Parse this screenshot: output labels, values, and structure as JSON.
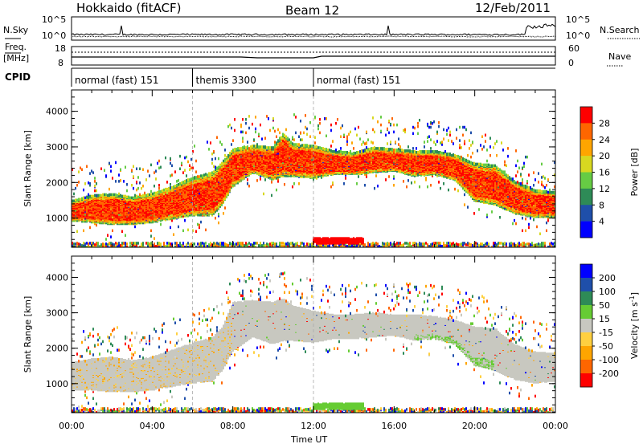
{
  "header": {
    "station": "Hokkaido (fitACF)",
    "beam": "Beam 12",
    "date": "12/Feb/2011"
  },
  "top_panels": {
    "nsky_label": "N.Sky",
    "nsearch_label": "N.Search",
    "freq_label_1": "Freq.",
    "freq_label_2": "[MHz]",
    "nave_label": "Nave",
    "cpid_label": "CPID",
    "nsky_ticks": [
      "10^5",
      "10^0"
    ],
    "nsearch_ticks": [
      "10^5",
      "10^0"
    ],
    "freq_ticks": [
      "18",
      "8"
    ],
    "nave_ticks": [
      "60",
      "0"
    ]
  },
  "cpid_segments": [
    {
      "label": "normal (fast) 151",
      "start": 0,
      "end": 6
    },
    {
      "label": "themis 3300",
      "start": 6,
      "end": 12
    },
    {
      "label": "normal (fast) 151",
      "start": 12,
      "end": 24
    }
  ],
  "colors": {
    "power_scale": [
      "#0000ff",
      "#1f4faa",
      "#2e8b57",
      "#66cc44",
      "#d8d820",
      "#ffa500",
      "#ff6600",
      "#ff0000"
    ],
    "velocity_scale": [
      "#ff0000",
      "#ff6600",
      "#ffa500",
      "#ffd040",
      "#c8c8c0",
      "#66cc33",
      "#2e8b57",
      "#1f4faa",
      "#0000ff"
    ]
  },
  "chart_data": [
    {
      "type": "heatmap",
      "title": "Power",
      "xlabel": "",
      "ylabel": "Slant Range [km]",
      "xlim": [
        0,
        24
      ],
      "ylim": [
        180,
        4600
      ],
      "x_ticks": [
        "00:00",
        "04:00",
        "08:00",
        "12:00",
        "16:00",
        "20:00",
        "00:00"
      ],
      "y_ticks": [
        1000,
        2000,
        3000,
        4000
      ],
      "colorbar_label": "Power [dB]",
      "colorbar_ticks": [
        4,
        8,
        12,
        16,
        20,
        24,
        28
      ],
      "main_band": {
        "t": [
          0,
          1,
          2,
          3,
          4,
          5,
          6,
          7,
          7.5,
          8,
          9,
          10,
          10.5,
          11,
          12,
          13,
          14,
          15,
          16,
          17,
          18,
          19,
          20,
          21,
          22,
          23,
          24
        ],
        "lower": [
          950,
          900,
          850,
          850,
          900,
          1000,
          1100,
          1100,
          1400,
          1900,
          2300,
          2100,
          2200,
          2200,
          2150,
          2250,
          2250,
          2300,
          2350,
          2200,
          2250,
          2100,
          1500,
          1400,
          1150,
          1050,
          1050
        ],
        "upper": [
          1500,
          1650,
          1700,
          1600,
          1700,
          1900,
          2150,
          2300,
          2600,
          2950,
          3050,
          3000,
          3400,
          3100,
          3050,
          2900,
          2850,
          3000,
          2950,
          2900,
          2900,
          2800,
          2550,
          2500,
          2050,
          1800,
          1750
        ]
      },
      "near_range_band": {
        "range": [
          300,
          450
        ],
        "t": [
          12,
          14.5
        ]
      }
    },
    {
      "type": "heatmap",
      "title": "Velocity",
      "xlabel": "Time UT",
      "ylabel": "Slant Range [km]",
      "xlim": [
        0,
        24
      ],
      "ylim": [
        180,
        4600
      ],
      "x_ticks": [
        "00:00",
        "04:00",
        "08:00",
        "12:00",
        "16:00",
        "20:00",
        "00:00"
      ],
      "y_ticks": [
        1000,
        2000,
        3000,
        4000
      ],
      "colorbar_label": "Velocity [m s",
      "colorbar_label_sup": "-1",
      "colorbar_label_end": "]",
      "colorbar_ticks": [
        200,
        100,
        50,
        15,
        -15,
        -50,
        -100,
        -200
      ],
      "main_band": {
        "t": [
          0,
          1,
          2,
          3,
          4,
          5,
          6,
          7,
          7.5,
          8,
          9,
          10,
          10.5,
          11,
          12,
          13,
          14,
          15,
          16,
          17,
          18,
          19,
          20,
          21,
          22,
          23,
          24
        ],
        "lower": [
          850,
          850,
          800,
          800,
          850,
          950,
          1050,
          1100,
          1400,
          1950,
          2350,
          2150,
          2250,
          2250,
          2200,
          2300,
          2300,
          2350,
          2400,
          2250,
          2300,
          2150,
          1550,
          1400,
          1150,
          1050,
          1100
        ],
        "upper": [
          1600,
          1700,
          1750,
          1650,
          1750,
          1950,
          2150,
          2300,
          2600,
          3300,
          3350,
          3300,
          3400,
          3200,
          3050,
          2950,
          2950,
          3000,
          2950,
          2950,
          2900,
          2800,
          2600,
          2550,
          2100,
          1900,
          1850
        ]
      },
      "near_range_band": {
        "range": [
          300,
          450
        ],
        "t": [
          12,
          14.5
        ]
      }
    }
  ]
}
